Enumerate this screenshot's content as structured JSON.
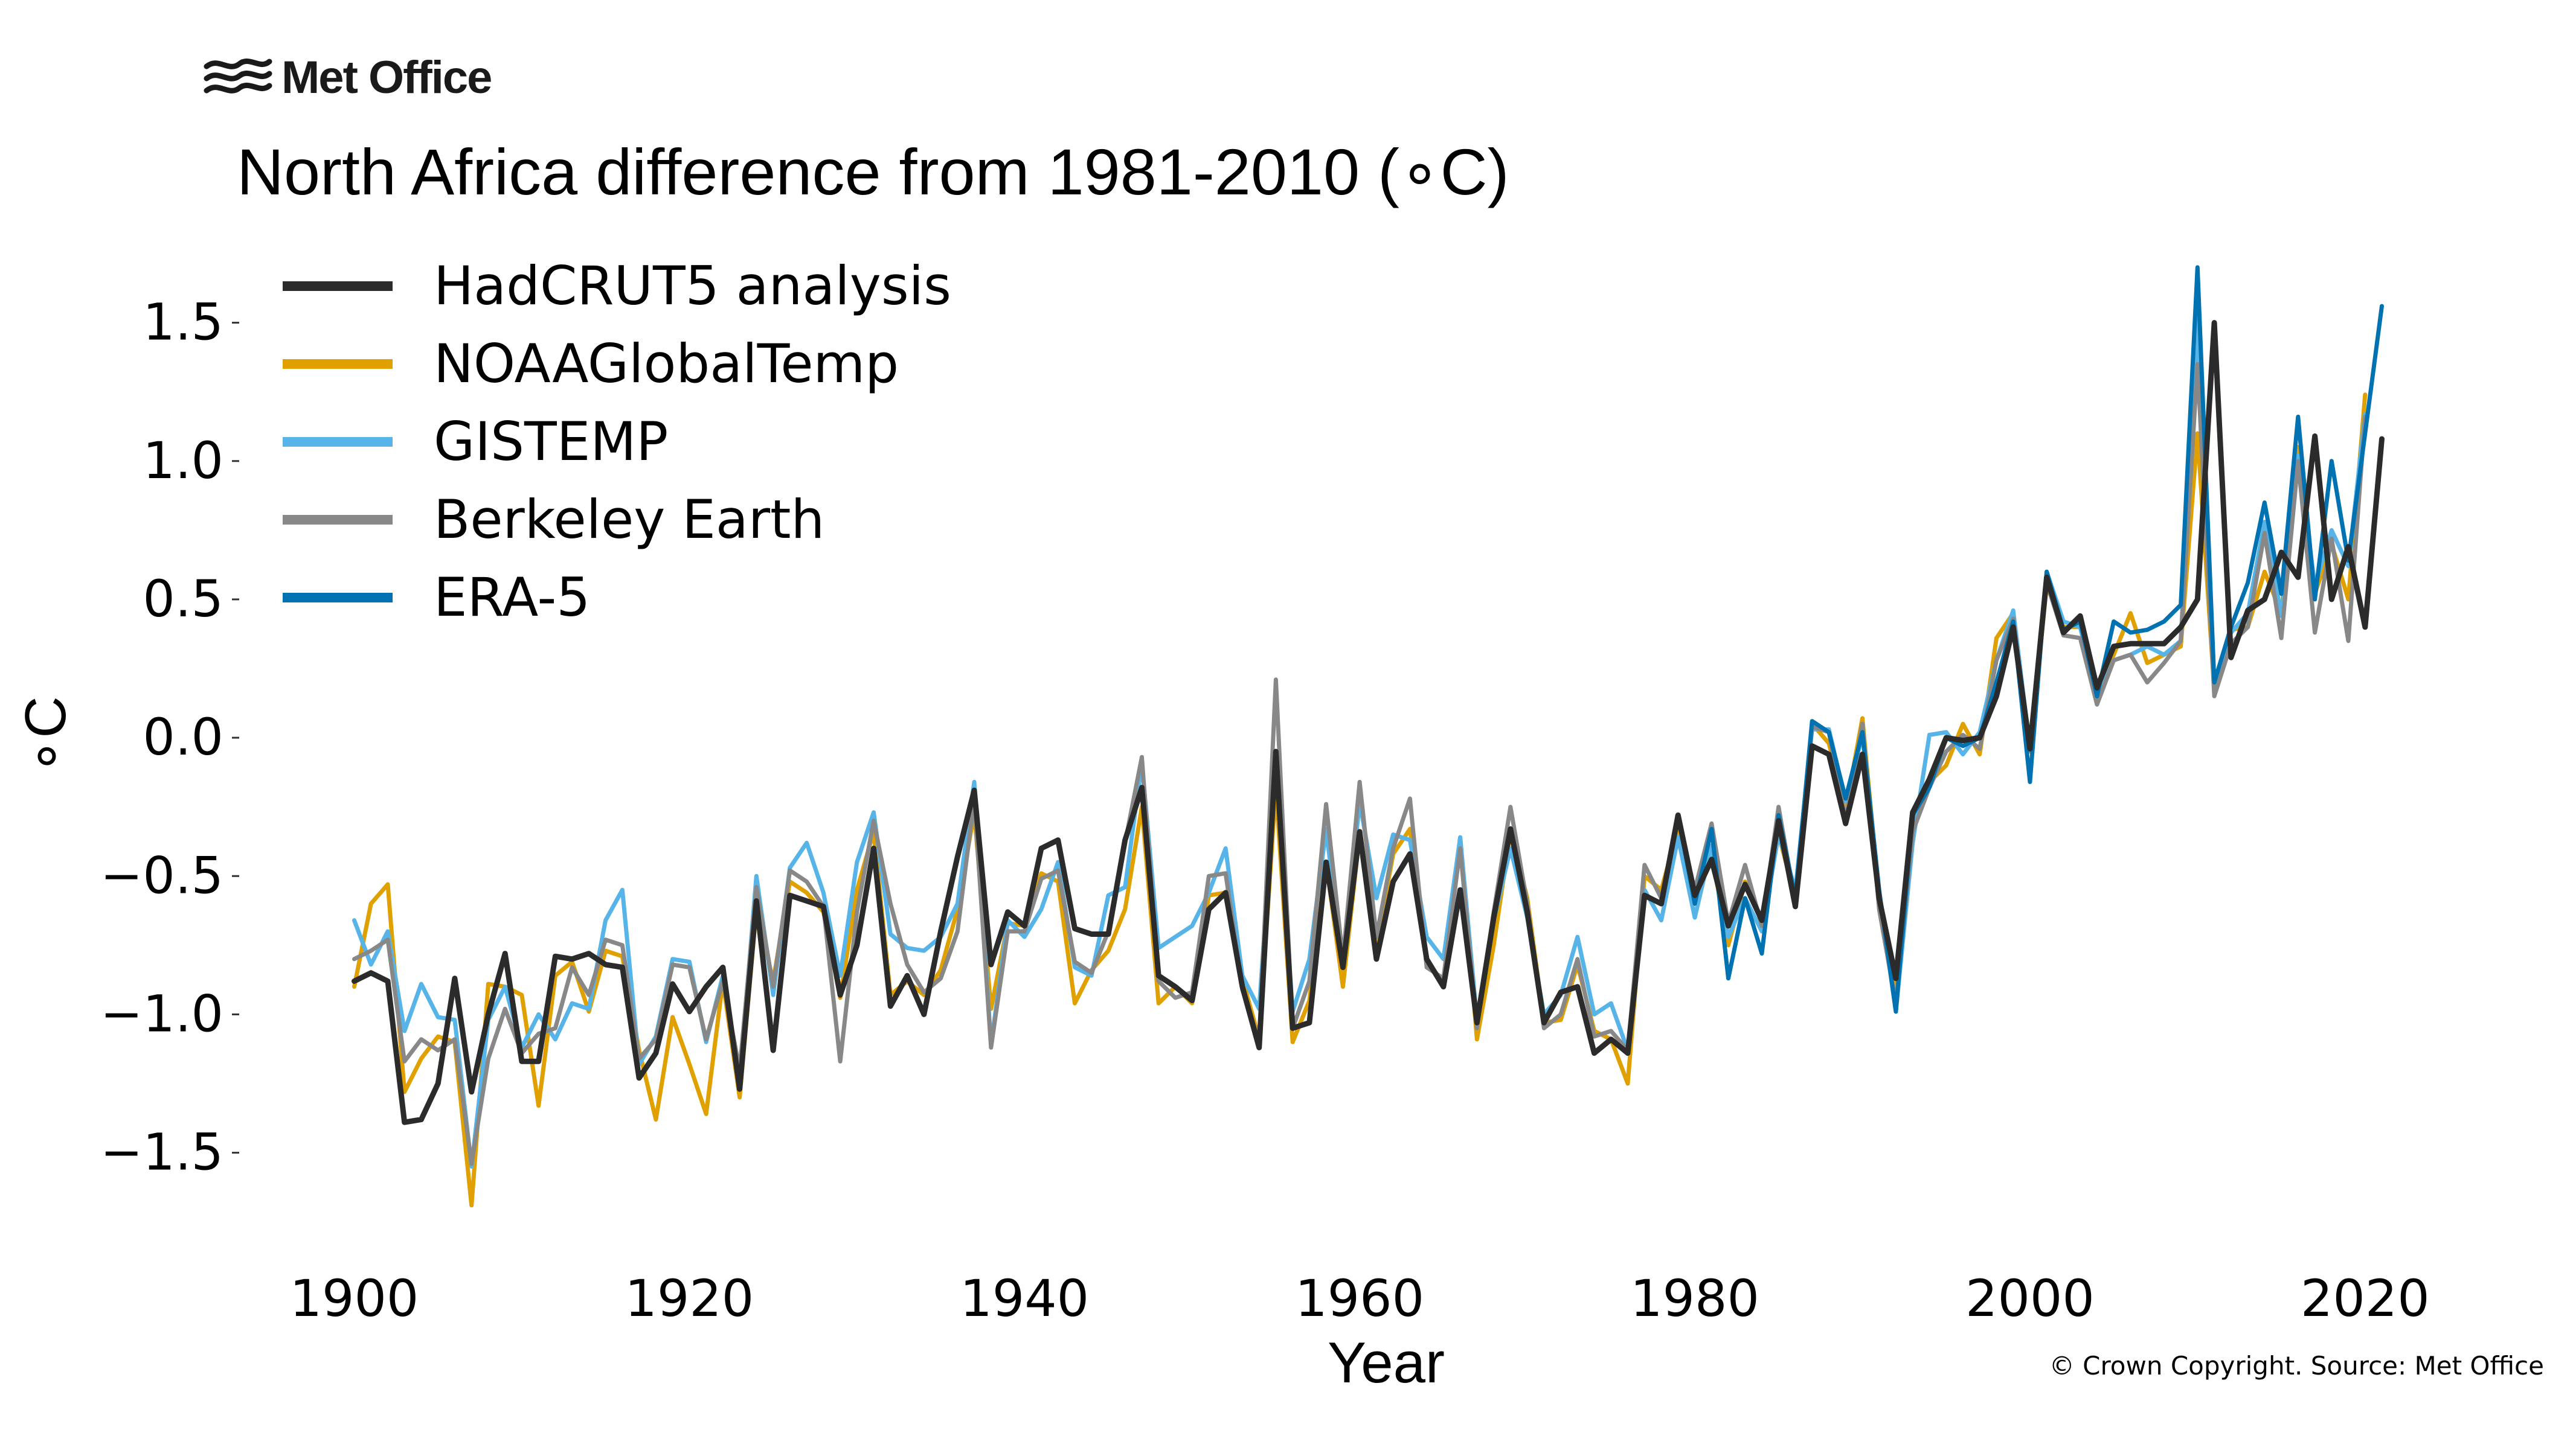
{
  "logo": {
    "text": "Met Office"
  },
  "title": "North Africa difference from 1981-2010 (∘C)",
  "copyright": "© Crown Copyright. Source: Met Office",
  "chart_data": {
    "type": "line",
    "title": "North Africa difference from 1981-2010 (∘C)",
    "xlabel": "Year",
    "ylabel": "∘C",
    "xlim": [
      1894,
      2027
    ],
    "ylim": [
      -1.85,
      1.75
    ],
    "xticks": [
      1900,
      1920,
      1940,
      1960,
      1980,
      2000,
      2020
    ],
    "yticks": [
      1.5,
      1.0,
      0.5,
      0.0,
      -0.5,
      -1.0,
      -1.5
    ],
    "ytick_labels": [
      "1.5",
      "1.0",
      "0.5",
      "0.0",
      "−0.5",
      "−1.0",
      "−1.5"
    ],
    "grid": false,
    "legend_position": "top-left",
    "series": [
      {
        "name": "NOAAGlobalTemp",
        "color": "#e0a000",
        "x_start": 1900,
        "values": [
          -0.9,
          -0.6,
          -0.53,
          -1.28,
          -1.16,
          -1.08,
          -1.1,
          -1.69,
          -0.89,
          -0.9,
          -0.93,
          -1.33,
          -0.86,
          -0.81,
          -0.99,
          -0.77,
          -0.79,
          -1.13,
          -1.38,
          -1.01,
          -1.18,
          -1.36,
          -0.88,
          -1.3,
          -0.62,
          -0.88,
          -0.52,
          -0.56,
          -0.63,
          -0.94,
          -0.55,
          -0.34,
          -0.93,
          -0.88,
          -0.93,
          -0.84,
          -0.62,
          -0.27,
          -0.98,
          -0.67,
          -0.68,
          -0.49,
          -0.52,
          -0.96,
          -0.84,
          -0.77,
          -0.62,
          -0.25,
          -0.96,
          -0.9,
          -0.96,
          -0.57,
          -0.56,
          -0.87,
          -1.09,
          -0.18,
          -1.1,
          -0.95,
          -0.45,
          -0.9,
          -0.35,
          -0.75,
          -0.42,
          -0.33,
          -0.8,
          -0.89,
          -0.36,
          -1.09,
          -0.75,
          -0.34,
          -0.58,
          -1.03,
          -1.02,
          -0.82,
          -1.06,
          -1.09,
          -1.25,
          -0.5,
          -0.55,
          -0.33,
          -0.55,
          -0.42,
          -0.75,
          -0.52,
          -0.66,
          -0.35,
          -0.58,
          0.05,
          -0.02,
          -0.26,
          0.07,
          -0.58,
          -0.93,
          -0.3,
          -0.16,
          -0.1,
          0.05,
          -0.06,
          0.36,
          0.45,
          -0.05,
          0.55,
          0.4,
          0.4,
          0.16,
          0.3,
          0.45,
          0.27,
          0.3,
          0.33,
          1.1,
          0.17,
          0.39,
          0.4,
          0.6,
          0.45,
          1.05,
          0.52,
          0.7,
          0.5,
          1.24
        ]
      },
      {
        "name": "GISTEMP",
        "color": "#56b4e9",
        "x_start": 1900,
        "values": [
          -0.66,
          -0.82,
          -0.7,
          -1.06,
          -0.89,
          -1.01,
          -1.02,
          -1.55,
          -1.02,
          -0.9,
          -1.12,
          -1.0,
          -1.09,
          -0.96,
          -0.98,
          -0.66,
          -0.55,
          -1.18,
          -1.08,
          -0.8,
          -0.81,
          -1.1,
          -0.86,
          -1.24,
          -0.5,
          -0.93,
          -0.47,
          -0.38,
          -0.56,
          -0.86,
          -0.45,
          -0.27,
          -0.71,
          -0.76,
          -0.77,
          -0.72,
          -0.6,
          -0.16,
          -1.11,
          -0.66,
          -0.72,
          -0.62,
          -0.45,
          -0.83,
          -0.86,
          -0.57,
          -0.54,
          -0.09,
          -0.76,
          -0.72,
          -0.68,
          -0.56,
          -0.4,
          -0.86,
          -0.98,
          -0.1,
          -0.99,
          -0.8,
          -0.33,
          -0.83,
          -0.23,
          -0.58,
          -0.35,
          -0.37,
          -0.72,
          -0.8,
          -0.36,
          -1.02,
          -0.66,
          -0.4,
          -0.65,
          -1.0,
          -0.93,
          -0.72,
          -1.0,
          -0.96,
          -1.13,
          -0.55,
          -0.66,
          -0.36,
          -0.65,
          -0.39,
          -0.72,
          -0.58,
          -0.7,
          -0.35,
          -0.55,
          0.03,
          0.03,
          -0.23,
          0.01,
          -0.57,
          -0.99,
          -0.38,
          0.01,
          0.02,
          -0.06,
          0.02,
          0.28,
          0.46,
          -0.04,
          0.6,
          0.42,
          0.4,
          0.14,
          0.28,
          0.3,
          0.33,
          0.3,
          0.35,
          1.52,
          0.18,
          0.38,
          0.45,
          0.78,
          0.44,
          1.02,
          0.55,
          0.75,
          0.62,
          1.17
        ]
      },
      {
        "name": "Berkeley Earth",
        "color": "#888888",
        "x_start": 1900,
        "values": [
          -0.8,
          -0.77,
          -0.73,
          -1.17,
          -1.09,
          -1.13,
          -1.09,
          -1.54,
          -1.16,
          -0.98,
          -1.14,
          -1.07,
          -1.05,
          -0.83,
          -0.93,
          -0.73,
          -0.75,
          -1.16,
          -1.09,
          -0.82,
          -0.83,
          -1.09,
          -0.88,
          -1.2,
          -0.54,
          -0.9,
          -0.48,
          -0.52,
          -0.61,
          -1.17,
          -0.63,
          -0.3,
          -0.6,
          -0.82,
          -0.92,
          -0.87,
          -0.7,
          -0.22,
          -1.12,
          -0.7,
          -0.7,
          -0.51,
          -0.48,
          -0.81,
          -0.85,
          -0.7,
          -0.38,
          -0.07,
          -0.88,
          -0.94,
          -0.92,
          -0.5,
          -0.49,
          -0.91,
          -1.1,
          0.21,
          -1.05,
          -0.88,
          -0.24,
          -0.8,
          -0.16,
          -0.72,
          -0.4,
          -0.22,
          -0.83,
          -0.87,
          -0.4,
          -1.05,
          -0.63,
          -0.25,
          -0.6,
          -1.05,
          -1.0,
          -0.8,
          -1.08,
          -1.06,
          -1.13,
          -0.46,
          -0.58,
          -0.3,
          -0.55,
          -0.31,
          -0.67,
          -0.46,
          -0.68,
          -0.25,
          -0.6,
          0.04,
          0.02,
          -0.3,
          0.05,
          -0.62,
          -0.96,
          -0.34,
          -0.18,
          -0.05,
          0.01,
          -0.04,
          0.28,
          0.43,
          -0.05,
          0.56,
          0.37,
          0.36,
          0.12,
          0.28,
          0.3,
          0.2,
          0.27,
          0.35,
          1.35,
          0.15,
          0.34,
          0.4,
          0.74,
          0.36,
          1.0,
          0.38,
          0.72,
          0.35,
          1.16
        ]
      },
      {
        "name": "ERA-5",
        "color": "#0072b2",
        "x_start": 1979,
        "values": [
          -0.28,
          -0.6,
          -0.33,
          -0.87,
          -0.58,
          -0.78,
          -0.28,
          -0.58,
          0.06,
          0.02,
          -0.22,
          0.02,
          -0.55,
          -0.99,
          -0.28,
          -0.18,
          0.0,
          -0.03,
          0.0,
          0.2,
          0.42,
          -0.16,
          0.6,
          0.39,
          0.42,
          0.15,
          0.42,
          0.38,
          0.39,
          0.42,
          0.48,
          1.7,
          0.2,
          0.4,
          0.56,
          0.85,
          0.52,
          1.16,
          0.5,
          1.0,
          0.64,
          1.1,
          1.56
        ]
      },
      {
        "name": "HadCRUT5 analysis",
        "color": "#2b2b2b",
        "x_start": 1900,
        "values": [
          -0.88,
          -0.85,
          -0.88,
          -1.39,
          -1.38,
          -1.25,
          -0.87,
          -1.28,
          -1.0,
          -0.78,
          -1.17,
          -1.17,
          -0.79,
          -0.8,
          -0.78,
          -0.82,
          -0.83,
          -1.23,
          -1.14,
          -0.89,
          -0.99,
          -0.9,
          -0.83,
          -1.27,
          -0.59,
          -1.13,
          -0.57,
          -0.59,
          -0.61,
          -0.93,
          -0.75,
          -0.4,
          -0.97,
          -0.86,
          -1.0,
          -0.7,
          -0.43,
          -0.19,
          -0.82,
          -0.63,
          -0.68,
          -0.4,
          -0.37,
          -0.69,
          -0.71,
          -0.71,
          -0.37,
          -0.18,
          -0.86,
          -0.9,
          -0.95,
          -0.62,
          -0.56,
          -0.9,
          -1.12,
          -0.05,
          -1.05,
          -1.03,
          -0.45,
          -0.83,
          -0.34,
          -0.8,
          -0.52,
          -0.42,
          -0.8,
          -0.9,
          -0.55,
          -1.03,
          -0.65,
          -0.33,
          -0.63,
          -1.03,
          -0.92,
          -0.9,
          -1.14,
          -1.09,
          -1.14,
          -0.57,
          -0.6,
          -0.28,
          -0.57,
          -0.44,
          -0.68,
          -0.53,
          -0.66,
          -0.3,
          -0.61,
          -0.03,
          -0.06,
          -0.31,
          -0.06,
          -0.58,
          -0.87,
          -0.27,
          -0.15,
          0.0,
          -0.01,
          0.0,
          0.15,
          0.4,
          -0.04,
          0.58,
          0.38,
          0.44,
          0.18,
          0.33,
          0.34,
          0.34,
          0.34,
          0.4,
          0.5,
          1.5,
          0.29,
          0.46,
          0.5,
          0.67,
          0.58,
          1.09,
          0.5,
          0.69,
          0.4,
          1.08
        ]
      }
    ],
    "legend_order": [
      "HadCRUT5 analysis",
      "NOAAGlobalTemp",
      "GISTEMP",
      "Berkeley Earth",
      "ERA-5"
    ]
  }
}
